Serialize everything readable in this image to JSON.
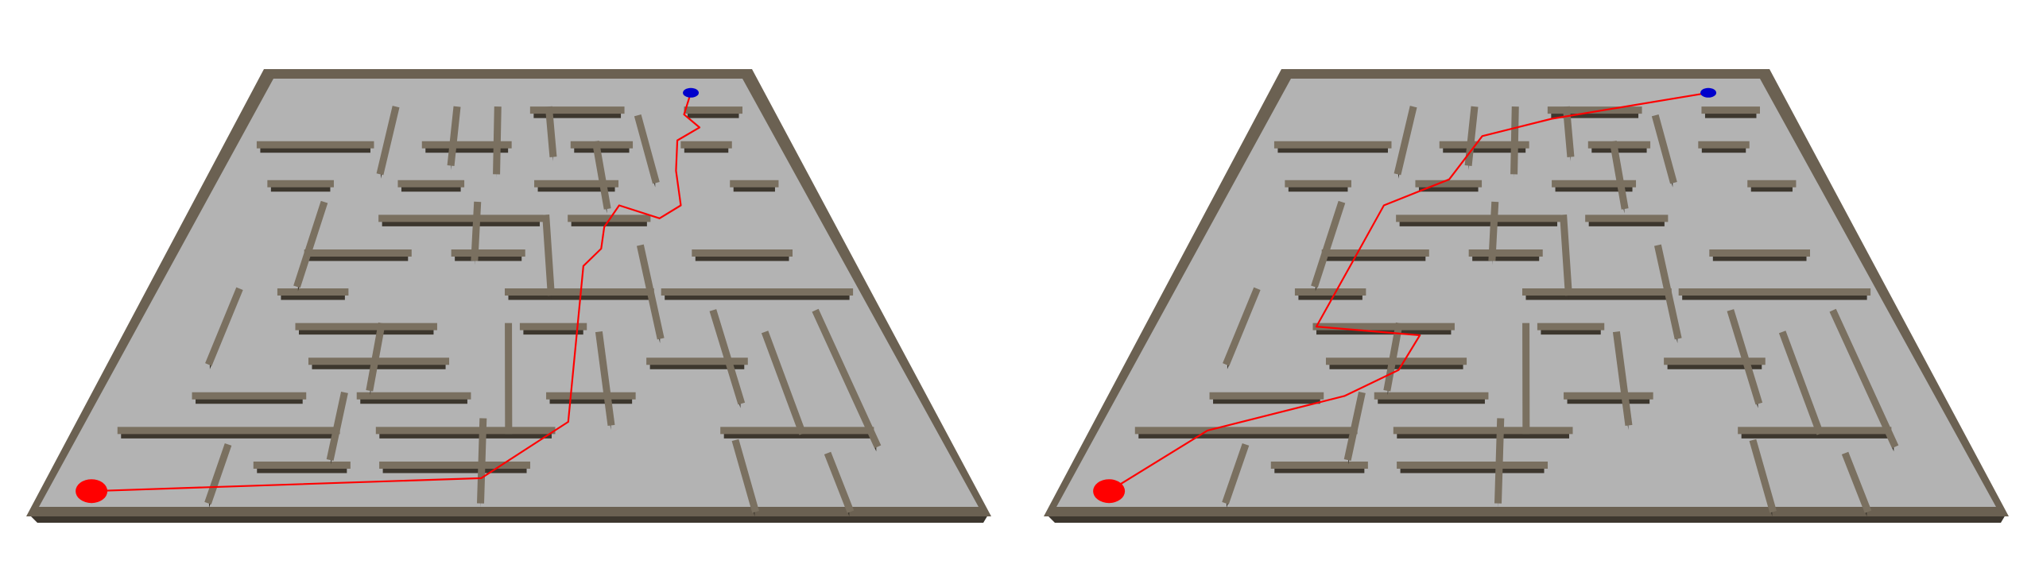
{
  "colors": {
    "background": "#ffffff",
    "floor": "#b3b3b3",
    "wall_top": "#7a7060",
    "wall_face": "#3d372e",
    "wall_border": "#6b6152",
    "path": "#ff0000",
    "start_marker": "#ff0000",
    "goal_marker": "#0000cc"
  },
  "icons": {
    "start_marker": "red-ellipse",
    "goal_marker": "blue-ellipse"
  },
  "panels": [
    {
      "name": "maze-panel-left",
      "route_label": "path"
    },
    {
      "name": "maze-panel-right",
      "route_label": "path"
    }
  ]
}
